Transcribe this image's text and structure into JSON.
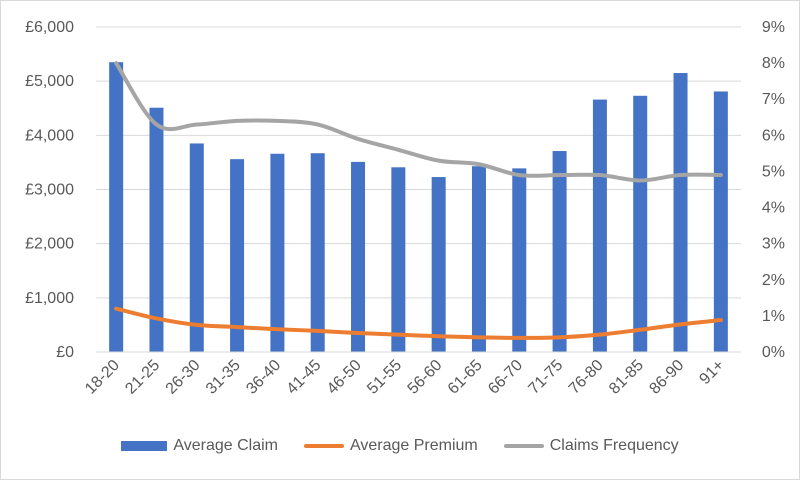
{
  "chart_data": {
    "type": "bar",
    "categories": [
      "18-20",
      "21-25",
      "26-30",
      "31-35",
      "36-40",
      "41-45",
      "46-50",
      "51-55",
      "56-60",
      "61-65",
      "66-70",
      "71-75",
      "76-80",
      "81-85",
      "86-90",
      "91+"
    ],
    "y_left": {
      "ylim": [
        0,
        6000
      ],
      "ticks": [
        "£0",
        "£1,000",
        "£2,000",
        "£3,000",
        "£4,000",
        "£5,000",
        "£6,000"
      ]
    },
    "y_right": {
      "ylim": [
        0,
        9
      ],
      "unit": "%",
      "ticks": [
        "0%",
        "1%",
        "2%",
        "3%",
        "4%",
        "5%",
        "6%",
        "7%",
        "8%",
        "9%"
      ]
    },
    "grid": "horizontal",
    "legend": "bottom",
    "series": [
      {
        "name": "Average Claim",
        "type": "bar",
        "axis": "left",
        "color": "#4472C4",
        "values": [
          5350,
          4510,
          3850,
          3560,
          3660,
          3670,
          3510,
          3410,
          3230,
          3430,
          3390,
          3710,
          4660,
          4730,
          5150,
          4810
        ]
      },
      {
        "name": "Average Premium",
        "type": "line",
        "axis": "left",
        "color": "#ED7D31",
        "values": [
          800,
          620,
          500,
          460,
          420,
          390,
          350,
          320,
          290,
          270,
          260,
          270,
          320,
          410,
          510,
          590
        ]
      },
      {
        "name": "Claims Frequency",
        "type": "line",
        "axis": "right",
        "color": "#A5A5A5",
        "values": [
          8.0,
          6.3,
          6.3,
          6.4,
          6.4,
          6.3,
          5.9,
          5.6,
          5.3,
          5.2,
          4.9,
          4.9,
          4.9,
          4.75,
          4.9,
          4.9
        ]
      }
    ]
  }
}
